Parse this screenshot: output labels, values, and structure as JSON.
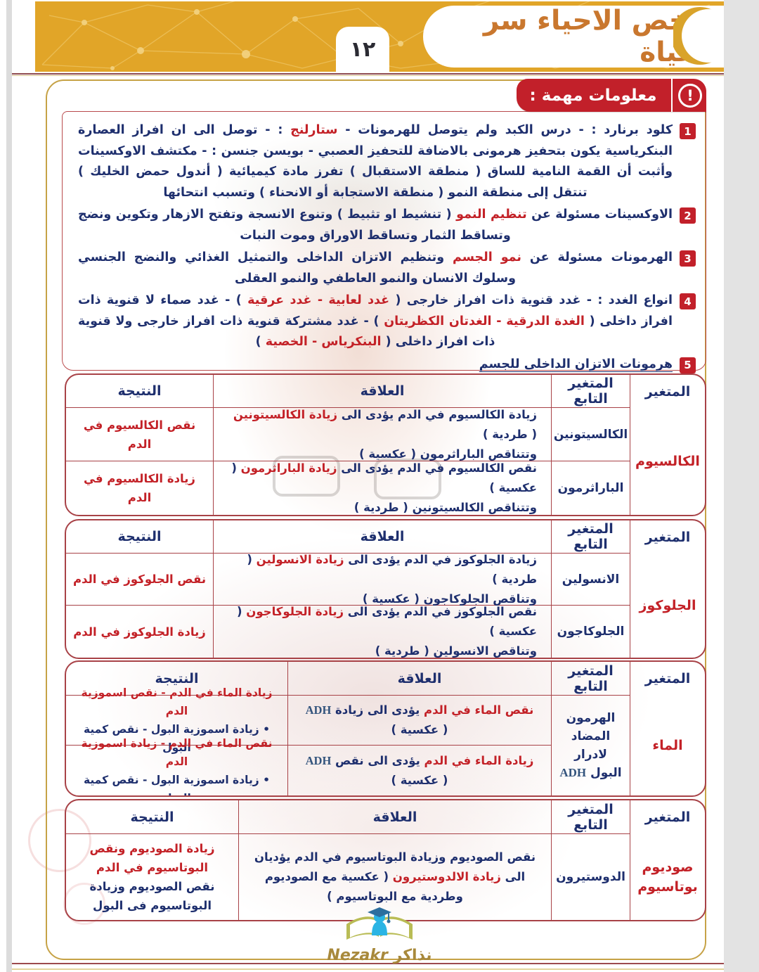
{
  "header": {
    "title": "ملخص الاحياء سر الحياة"
  },
  "page": {
    "number": "١٢"
  },
  "info": {
    "label": "معلومات مهمة :",
    "icon": "!"
  },
  "items": [
    {
      "num": "1",
      "segments": [
        {
          "t": "كلود برنارد : - درس الكبد ولم يتوصل للهرمونات - ",
          "c": "n"
        },
        {
          "t": "ستارلنج",
          "c": "r"
        },
        {
          "t": " : - توصل الى ان افراز العصارة البنكرياسية يكون بتحفيز هرمونى بالاضافة للتحفيز العصبي - بويسن جنسن : - مكتشف الاوكسينات وأثبت أن القمة النامية للساق ( منطقة الاستقبال ) تفرز مادة كيميائية ( أندول حمض الخليك ) تنتقل إلى منطقة النمو ( منطقة الاستجابة أو الانحناء ) وتسبب انتحائها",
          "c": "n"
        }
      ]
    },
    {
      "num": "2",
      "segments": [
        {
          "t": "الاوكسينات مسئولة عن ",
          "c": "n"
        },
        {
          "t": "تنظيم النمو",
          "c": "r"
        },
        {
          "t": " ( تنشيط او تثبيط ) وتنوع الانسجة وتفتح الازهار وتكوين ونضج وتساقط الثمار وتساقط الاوراق وموت النبات",
          "c": "n"
        }
      ]
    },
    {
      "num": "3",
      "segments": [
        {
          "t": "الهرمونات مسئولة عن ",
          "c": "n"
        },
        {
          "t": "نمو الجسم",
          "c": "r"
        },
        {
          "t": " وتنظيم الاتزان الداخلى والتمثيل الغذائي والنضج الجنسي وسلوك الانسان والنمو العاطفي والنمو العقلى",
          "c": "n"
        }
      ]
    },
    {
      "num": "4",
      "segments": [
        {
          "t": "انواع الغدد : - غدد قنوية ذات افراز خارجى ( ",
          "c": "n"
        },
        {
          "t": "غدد لعابية - غدد عرقية",
          "c": "r"
        },
        {
          "t": " ) - غدد صماء لا قنوية ذات افراز داخلى ( ",
          "c": "n"
        },
        {
          "t": "الغدة الدرقية - الغدتان الكظريتان",
          "c": "r"
        },
        {
          "t": " ) - غدد مشتركة قنوية ذات افراز خارجى ولا قنوية ذات افراز داخلى ( ",
          "c": "n"
        },
        {
          "t": "البنكرياس - الخصية",
          "c": "r"
        },
        {
          "t": " )",
          "c": "n"
        }
      ]
    },
    {
      "num": "5",
      "segments": [
        {
          "t": "هرمونات الاتزان الداخلى للجسم",
          "c": "n"
        }
      ]
    }
  ],
  "table_headers": {
    "result": "النتيجة",
    "relation": "العلاقة",
    "dependent": "المتغير التابع",
    "variable": "المتغير"
  },
  "tables": [
    {
      "variable": "الكالسيوم",
      "rows": [
        {
          "dependent": "الكالسيتونين",
          "relation": [
            {
              "t": "زيادة الكالسيوم في الدم يؤدى الى ",
              "c": "n"
            },
            {
              "t": "زيادة الكالسيتونين",
              "c": "r"
            },
            {
              "t": " ( طردية )",
              "c": "n"
            },
            {
              "br": true
            },
            {
              "t": "وتتناقص الباراثرمون ( عكسية )",
              "c": "n"
            }
          ],
          "result": [
            {
              "t": "نقص الكالسيوم في الدم",
              "c": "r"
            }
          ]
        },
        {
          "dependent": "الباراثرمون",
          "relation": [
            {
              "t": "نقص الكالسيوم في الدم يؤدى الى ",
              "c": "n"
            },
            {
              "t": "زيادة الباراثرمون",
              "c": "r"
            },
            {
              "t": " ( عكسية )",
              "c": "n"
            },
            {
              "br": true
            },
            {
              "t": "وتتناقص الكالسيتونين ( طردية )",
              "c": "n"
            }
          ],
          "result": [
            {
              "t": "زيادة الكالسيوم في الدم",
              "c": "r"
            }
          ]
        }
      ]
    },
    {
      "variable": "الجلوكوز",
      "rows": [
        {
          "dependent": "الانسولين",
          "relation": [
            {
              "t": "زيادة الجلوكوز في الدم يؤدى الى ",
              "c": "n"
            },
            {
              "t": "زيادة الانسولين",
              "c": "r"
            },
            {
              "t": " ( طردية )",
              "c": "n"
            },
            {
              "br": true
            },
            {
              "t": "وتناقص الجلوكاجون ( عكسية )",
              "c": "n"
            }
          ],
          "result": [
            {
              "t": "نقص الجلوكوز في الدم",
              "c": "r"
            }
          ]
        },
        {
          "dependent": "الجلوكاجون",
          "relation": [
            {
              "t": "نقص الجلوكوز في الدم يؤدى الى ",
              "c": "n"
            },
            {
              "t": "زيادة الجلوكاجون",
              "c": "r"
            },
            {
              "t": " ( عكسية )",
              "c": "n"
            },
            {
              "br": true
            },
            {
              "t": "وتناقص الانسولين ( طردية )",
              "c": "n"
            }
          ],
          "result": [
            {
              "t": "زيادة الجلوكوز في الدم",
              "c": "r"
            }
          ]
        }
      ]
    },
    {
      "variable": "الماء",
      "dependent_segments": [
        {
          "t": "الهرمون",
          "c": "n"
        },
        {
          "br": true
        },
        {
          "t": "المضاد لادرار",
          "c": "n"
        },
        {
          "br": true
        },
        {
          "t": "البول ",
          "c": "n"
        },
        {
          "t": "ADH",
          "c": "a"
        }
      ],
      "rows": [
        {
          "relation": [
            {
              "t": "نقص الماء في الدم",
              "c": "r"
            },
            {
              "t": " يؤدى الى زيادة ",
              "c": "n"
            },
            {
              "t": "ADH",
              "c": "a"
            },
            {
              "t": " ( عكسية )",
              "c": "n"
            }
          ],
          "result": [
            {
              "t": "زيادة الماء في الدم - نقص اسموزية الدم",
              "c": "r"
            },
            {
              "br": true
            },
            {
              "t": "• زيادة اسموزية البول - نقص كمية البول",
              "c": "n"
            }
          ]
        },
        {
          "relation": [
            {
              "t": "زيادة الماء في الدم",
              "c": "r"
            },
            {
              "t": " يؤدى الى نقص ",
              "c": "n"
            },
            {
              "t": "ADH",
              "c": "a"
            },
            {
              "t": " ( عكسية )",
              "c": "n"
            }
          ],
          "result": [
            {
              "t": "نقص الماء في الدم - زيادة اسموزية الدم",
              "c": "r"
            },
            {
              "br": true
            },
            {
              "t": "• زيادة اسموزية البول - نقص كمية البول",
              "c": "n"
            }
          ]
        }
      ]
    },
    {
      "variable_segments": [
        {
          "t": "صوديوم",
          "c": "r"
        },
        {
          "br": true
        },
        {
          "t": "بوتاسيوم",
          "c": "r"
        }
      ],
      "rows": [
        {
          "dependent": "الدوستيرون",
          "relation": [
            {
              "t": "نقص الصوديوم وزيادة البوتاسيوم في الدم يؤديان الى ",
              "c": "n"
            },
            {
              "t": "زيادة الالدوستيرون",
              "c": "r"
            },
            {
              "t": " ( عكسية مع الصوديوم وطردية مع البوتاسيوم )",
              "c": "n"
            }
          ],
          "result": [
            {
              "t": "زيادة الصوديوم ونقص البوتاسيوم في الدم",
              "c": "r"
            },
            {
              "br": true
            },
            {
              "t": "نقص الصوديوم وزيادة البوتاسيوم فى البول",
              "c": "n"
            }
          ]
        }
      ]
    }
  ],
  "footer": {
    "brand_ar": "نذاكر",
    "brand_en": "Nezakr"
  },
  "colors": {
    "banner_gold": "#e1a528",
    "title_orange": "#c9772e",
    "badge_red": "#c2202a",
    "text_navy": "#1e2f6e",
    "text_red": "#c32127",
    "table_border": "#a84247",
    "frame_gold": "#c6a246"
  }
}
